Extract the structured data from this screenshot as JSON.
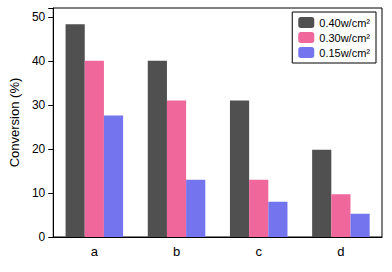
{
  "chart_data": {
    "type": "bar",
    "y_label": "Conversion (%)",
    "categories": [
      "a",
      "b",
      "c",
      "d"
    ],
    "series": [
      {
        "name": "0.40w/cm²",
        "color": "#505050",
        "values": [
          48.3,
          40.0,
          31.0,
          19.8
        ]
      },
      {
        "name": "0.30w/cm²",
        "color": "#f0679c",
        "values": [
          40.0,
          31.0,
          13.0,
          9.7
        ]
      },
      {
        "name": "0.15w/cm²",
        "color": "#7474ee",
        "values": [
          27.6,
          13.0,
          8.0,
          5.3
        ]
      }
    ],
    "ylim": [
      0,
      52
    ],
    "yticks": [
      0,
      10,
      20,
      30,
      40,
      50
    ],
    "grid": false,
    "legend": "upper right"
  }
}
